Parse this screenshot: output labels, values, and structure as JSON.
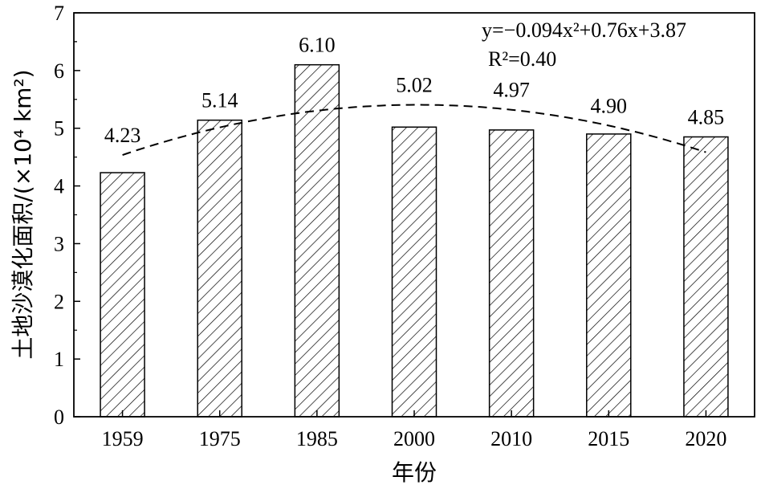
{
  "chart_data": {
    "type": "bar",
    "categories": [
      "1959",
      "1975",
      "1985",
      "2000",
      "2010",
      "2015",
      "2020"
    ],
    "values": [
      4.23,
      5.14,
      6.1,
      5.02,
      4.97,
      4.9,
      4.85
    ],
    "value_labels": [
      "4.23",
      "5.14",
      "6.10",
      "5.02",
      "4.97",
      "4.90",
      "4.85"
    ],
    "xlabel": "年份",
    "ylabel": "土地沙漠化面积/(×10⁴ km²)",
    "ylim": [
      0,
      7
    ],
    "yticks": [
      "0",
      "1",
      "2",
      "3",
      "4",
      "5",
      "6",
      "7"
    ],
    "bar_fill": "hatched",
    "grid": false,
    "trendline": {
      "style": "dashed",
      "type": "polynomial",
      "coefficients": {
        "a": -0.094,
        "b": 0.76,
        "c": 3.87
      },
      "equation": "y=−0.094x²+0.76x+3.87",
      "r_squared": "R²=0.40"
    }
  }
}
